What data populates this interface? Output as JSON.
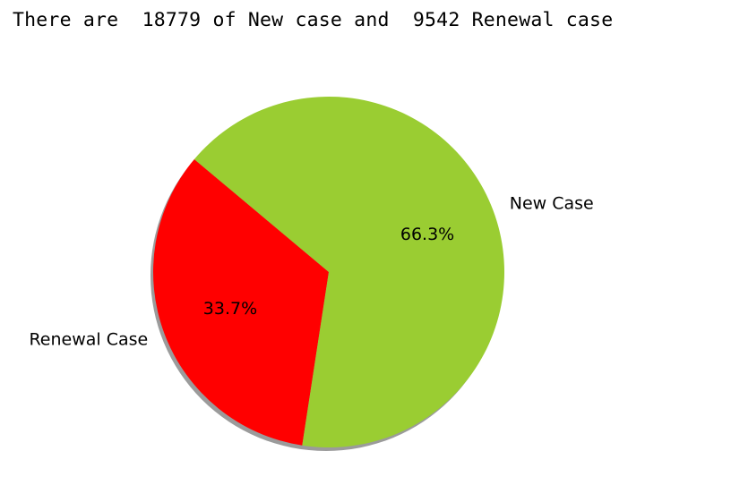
{
  "output": {
    "text": "There are  18779 of New case and  9542 Renewal case"
  },
  "chart_data": {
    "type": "pie",
    "labels": [
      "Renewal Case",
      "New Case"
    ],
    "values": [
      9542,
      18779
    ],
    "percent_labels": [
      "33.7%",
      "66.3%"
    ],
    "colors": [
      "#ff0000",
      "#9acd32"
    ],
    "start_angle_deg": 140,
    "shadow": true
  }
}
